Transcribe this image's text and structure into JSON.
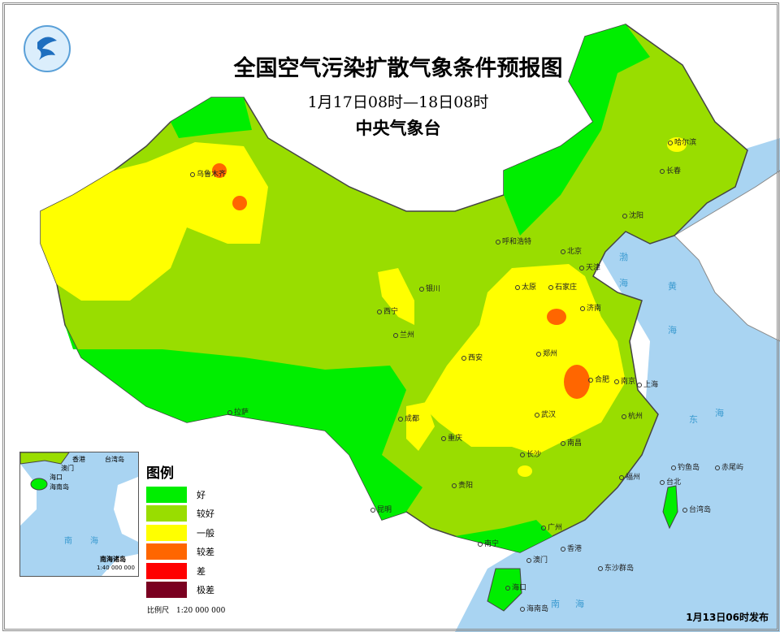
{
  "header": {
    "title": "全国空气污染扩散气象条件预报图",
    "period": "1月17日08时—18日08时",
    "issuer": "中央气象台"
  },
  "legend": {
    "title": "图例",
    "items": [
      {
        "label": "好",
        "color": "#00ee00"
      },
      {
        "label": "较好",
        "color": "#99dd00"
      },
      {
        "label": "一般",
        "color": "#ffff00"
      },
      {
        "label": "较差",
        "color": "#ff6600"
      },
      {
        "label": "差",
        "color": "#ff0000"
      },
      {
        "label": "极差",
        "color": "#7a0020"
      }
    ]
  },
  "scale": "比例尺　1:20 000 000",
  "issued": "1月13日06时发布",
  "inset": {
    "labels": [
      "香港",
      "澳门",
      "海口",
      "海南岛",
      "台湾岛",
      "南",
      "海"
    ],
    "title": "南海诸岛",
    "scale": "1:40 000 000"
  },
  "cities": [
    "乌鲁木齐",
    "哈尔滨",
    "长春",
    "沈阳",
    "呼和浩特",
    "北京",
    "天津",
    "石家庄",
    "太原",
    "济南",
    "银川",
    "西宁",
    "兰州",
    "西安",
    "郑州",
    "合肥",
    "南京",
    "上海",
    "杭州",
    "武汉",
    "成都",
    "重庆",
    "长沙",
    "南昌",
    "拉萨",
    "贵阳",
    "昆明",
    "福州",
    "台北",
    "广州",
    "南宁",
    "香港",
    "澳门",
    "海口",
    "海南岛",
    "台湾岛",
    "钓鱼岛",
    "赤尾屿",
    "东沙群岛"
  ],
  "seas": [
    "渤",
    "海",
    "黄",
    "海",
    "东",
    "海",
    "南",
    "海"
  ],
  "colors": {
    "ocean": "#a9d4f2",
    "border": "#555555"
  }
}
